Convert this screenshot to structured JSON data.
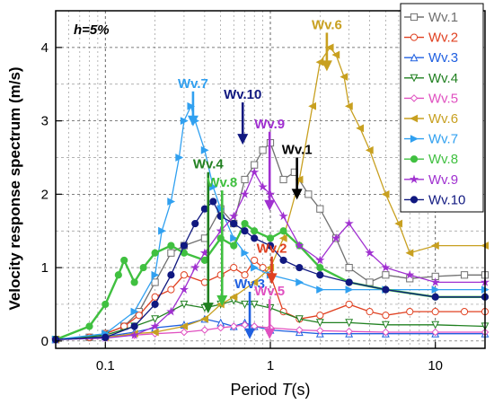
{
  "chart_data": {
    "type": "line",
    "xlabel": "Period",
    "xlabel_var": "T",
    "xlabel_unit": "(s)",
    "ylabel": "Velocity response spectrum",
    "ylabel_unit": "(m/s)",
    "xscale": "log",
    "xlim": [
      0.05,
      20
    ],
    "ylim": [
      -0.1,
      4.5
    ],
    "xticks": [
      0.1,
      1,
      10
    ],
    "xtick_labels": [
      "0.1",
      "1",
      "10"
    ],
    "yticks": [
      0,
      1,
      2,
      3,
      4
    ],
    "ytick_labels": [
      "0",
      "1",
      "2",
      "3",
      "4"
    ],
    "grid": true,
    "legend_position": "top-right",
    "damping_label": "h=5%",
    "series": [
      {
        "name": "Wv.1",
        "color": "#707070",
        "marker": "square",
        "x": [
          0.05,
          0.08,
          0.1,
          0.13,
          0.16,
          0.2,
          0.25,
          0.3,
          0.4,
          0.5,
          0.6,
          0.7,
          0.8,
          0.9,
          1.0,
          1.2,
          1.4,
          1.7,
          2.0,
          2.5,
          3.0,
          4.0,
          5.0,
          7.0,
          10,
          15,
          20
        ],
        "y": [
          0.02,
          0.05,
          0.1,
          0.2,
          0.4,
          0.8,
          1.2,
          1.3,
          1.4,
          1.8,
          1.6,
          2.2,
          2.4,
          2.6,
          2.7,
          2.2,
          2.3,
          2.0,
          1.8,
          1.4,
          1.0,
          0.8,
          0.9,
          0.85,
          0.88,
          0.9,
          0.9
        ]
      },
      {
        "name": "Wv.2",
        "color": "#e04020",
        "marker": "circle",
        "x": [
          0.05,
          0.08,
          0.1,
          0.13,
          0.16,
          0.2,
          0.25,
          0.3,
          0.4,
          0.5,
          0.6,
          0.7,
          0.8,
          0.9,
          1.0,
          1.2,
          1.5,
          2.0,
          3.0,
          4.0,
          5.0,
          7.0,
          10,
          15,
          20
        ],
        "y": [
          0.02,
          0.05,
          0.1,
          0.2,
          0.35,
          0.6,
          0.7,
          0.9,
          0.8,
          0.9,
          1.0,
          0.9,
          1.1,
          1.0,
          0.9,
          0.4,
          0.3,
          0.35,
          0.5,
          0.4,
          0.35,
          0.4,
          0.4,
          0.4,
          0.4
        ]
      },
      {
        "name": "Wv.3",
        "color": "#2060e0",
        "marker": "triangle",
        "x": [
          0.05,
          0.1,
          0.15,
          0.2,
          0.3,
          0.4,
          0.5,
          0.6,
          0.7,
          0.8,
          1.0,
          1.5,
          2.0,
          3.0,
          5.0,
          10,
          20
        ],
        "y": [
          0.02,
          0.06,
          0.12,
          0.18,
          0.22,
          0.3,
          0.25,
          0.2,
          0.25,
          0.2,
          0.15,
          0.12,
          0.1,
          0.1,
          0.1,
          0.1,
          0.1
        ]
      },
      {
        "name": "Wv.4",
        "color": "#208020",
        "marker": "triangle-down",
        "x": [
          0.05,
          0.1,
          0.15,
          0.2,
          0.3,
          0.4,
          0.5,
          0.6,
          0.7,
          0.8,
          1.0,
          1.5,
          2.0,
          3.0,
          5.0,
          10,
          20
        ],
        "y": [
          0.02,
          0.08,
          0.2,
          0.3,
          0.5,
          0.45,
          0.5,
          0.55,
          0.5,
          0.5,
          0.45,
          0.3,
          0.25,
          0.25,
          0.22,
          0.22,
          0.2
        ]
      },
      {
        "name": "Wv.5",
        "color": "#e050c0",
        "marker": "diamond",
        "x": [
          0.05,
          0.1,
          0.15,
          0.2,
          0.3,
          0.4,
          0.5,
          0.6,
          0.7,
          0.8,
          1.0,
          1.5,
          2.0,
          3.0,
          5.0,
          10,
          20
        ],
        "y": [
          0.02,
          0.05,
          0.08,
          0.1,
          0.12,
          0.15,
          0.18,
          0.2,
          0.22,
          0.2,
          0.18,
          0.15,
          0.14,
          0.13,
          0.12,
          0.12,
          0.12
        ]
      },
      {
        "name": "Wv.6",
        "color": "#c8a020",
        "marker": "triangle-left",
        "x": [
          0.05,
          0.1,
          0.15,
          0.2,
          0.3,
          0.4,
          0.5,
          0.6,
          0.8,
          1.0,
          1.2,
          1.5,
          1.8,
          2.0,
          2.3,
          2.5,
          2.8,
          3.0,
          3.5,
          4.0,
          5.0,
          6.0,
          7.0,
          10,
          20
        ],
        "y": [
          0.02,
          0.05,
          0.1,
          0.12,
          0.2,
          0.3,
          0.5,
          0.6,
          0.8,
          1.0,
          1.4,
          2.2,
          3.2,
          3.8,
          4.0,
          3.9,
          3.6,
          3.2,
          2.9,
          2.6,
          2.0,
          1.6,
          1.2,
          1.3,
          1.3
        ]
      },
      {
        "name": "Wv.7",
        "color": "#30a0f0",
        "marker": "triangle-right",
        "x": [
          0.05,
          0.1,
          0.15,
          0.2,
          0.22,
          0.25,
          0.28,
          0.3,
          0.33,
          0.35,
          0.4,
          0.45,
          0.5,
          0.6,
          0.7,
          0.8,
          1.0,
          1.5,
          2.0,
          3.0,
          5.0,
          10,
          20
        ],
        "y": [
          0.02,
          0.1,
          0.4,
          0.9,
          1.5,
          1.9,
          2.5,
          3.0,
          3.2,
          3.0,
          2.6,
          2.1,
          1.8,
          1.4,
          1.2,
          1.0,
          0.9,
          0.8,
          0.7,
          0.7,
          0.7,
          0.7,
          0.7
        ]
      },
      {
        "name": "Wv.8",
        "color": "#40c040",
        "marker": "circle",
        "x": [
          0.05,
          0.08,
          0.1,
          0.12,
          0.13,
          0.15,
          0.17,
          0.2,
          0.25,
          0.3,
          0.4,
          0.5,
          0.6,
          0.7,
          0.8,
          1.0,
          1.2,
          1.5,
          2.0,
          3.0,
          5.0,
          10,
          20
        ],
        "y": [
          0.02,
          0.2,
          0.5,
          0.9,
          1.1,
          0.8,
          1.0,
          1.2,
          1.3,
          1.2,
          1.1,
          1.4,
          1.3,
          1.6,
          1.5,
          1.4,
          1.5,
          1.3,
          1.0,
          0.8,
          0.7,
          0.6,
          0.6
        ]
      },
      {
        "name": "Wv.9",
        "color": "#a030d0",
        "marker": "star",
        "x": [
          0.05,
          0.1,
          0.15,
          0.2,
          0.25,
          0.3,
          0.35,
          0.4,
          0.5,
          0.6,
          0.7,
          0.8,
          0.9,
          1.0,
          1.2,
          1.5,
          2.0,
          2.5,
          3.0,
          4.0,
          5.0,
          7.0,
          10,
          20
        ],
        "y": [
          0.02,
          0.04,
          0.08,
          0.2,
          0.4,
          0.7,
          1.0,
          1.2,
          1.5,
          1.7,
          2.0,
          2.3,
          2.1,
          2.0,
          1.7,
          1.3,
          1.1,
          1.4,
          1.6,
          1.2,
          1.0,
          0.9,
          0.8,
          0.8
        ]
      },
      {
        "name": "Wv.10",
        "color": "#101880",
        "marker": "circle",
        "x": [
          0.05,
          0.1,
          0.15,
          0.2,
          0.25,
          0.3,
          0.35,
          0.4,
          0.45,
          0.5,
          0.6,
          0.7,
          0.8,
          1.0,
          1.2,
          1.5,
          2.0,
          3.0,
          5.0,
          10,
          20
        ],
        "y": [
          0.02,
          0.05,
          0.2,
          0.5,
          0.9,
          1.3,
          1.6,
          1.8,
          1.9,
          1.7,
          1.6,
          1.5,
          1.4,
          1.3,
          1.1,
          1.0,
          0.9,
          0.8,
          0.7,
          0.6,
          0.6
        ]
      }
    ],
    "annotations": [
      {
        "text": "Wv.6",
        "x": 2.2,
        "y": 4.25,
        "color": "#c8a020",
        "arrow_y": 3.7
      },
      {
        "text": "Wv.7",
        "x": 0.34,
        "y": 3.45,
        "color": "#30a0f0",
        "arrow_y": 2.95
      },
      {
        "text": "Wv.10",
        "x": 0.68,
        "y": 3.3,
        "color": "#101880",
        "arrow_y": 2.7
      },
      {
        "text": "Wv.9",
        "x": 0.99,
        "y": 2.9,
        "color": "#a030d0",
        "arrow_y": 1.8
      },
      {
        "text": "Wv.1",
        "x": 1.45,
        "y": 2.55,
        "color": "#000000",
        "arrow_y": 1.95
      },
      {
        "text": "Wv.4",
        "x": 0.42,
        "y": 2.35,
        "color": "#208020",
        "arrow_y": 0.4
      },
      {
        "text": "Wv.8",
        "x": 0.51,
        "y": 2.1,
        "color": "#40c040",
        "arrow_y": 0.5
      },
      {
        "text": "Wv.2",
        "x": 1.02,
        "y": 1.2,
        "color": "#e04020",
        "arrow_y": 0.8
      },
      {
        "text": "Wv.3",
        "x": 0.75,
        "y": 0.72,
        "color": "#2060e0",
        "arrow_y": 0.05
      },
      {
        "text": "Wv.5",
        "x": 0.99,
        "y": 0.62,
        "color": "#e050c0",
        "arrow_y": 0.05
      }
    ]
  }
}
